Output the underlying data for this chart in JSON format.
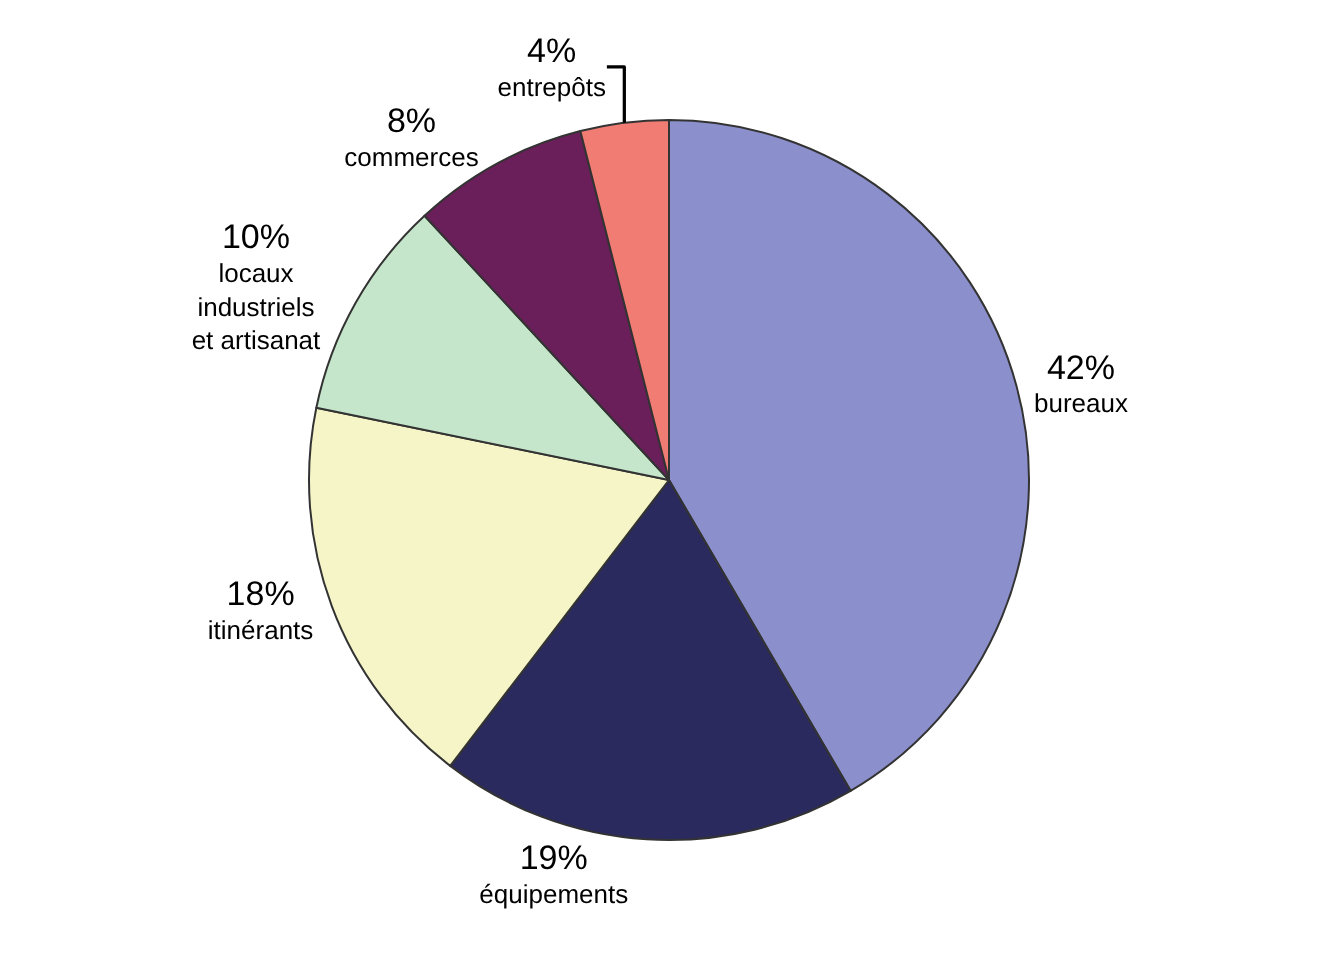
{
  "chart_data": {
    "type": "pie",
    "categories": [
      "bureaux",
      "équipements",
      "itinérants",
      "locaux industriels et artisanat",
      "commerces",
      "entrepôts"
    ],
    "values": [
      42,
      19,
      18,
      10,
      8,
      4
    ],
    "value_labels": [
      "42%",
      "19%",
      "18%",
      "10%",
      "8%",
      "4%"
    ],
    "colors": [
      "#8b8fcb",
      "#2a2a5e",
      "#f5f5c8",
      "#c6e6cc",
      "#6b1f5a",
      "#f07c74"
    ],
    "legend": false
  }
}
